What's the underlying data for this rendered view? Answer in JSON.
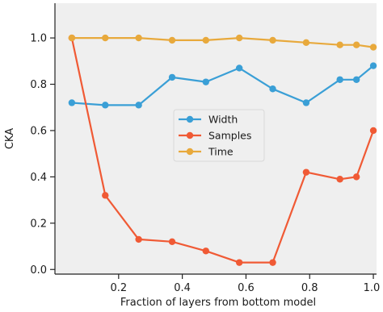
{
  "chart_data": {
    "type": "line",
    "title": "",
    "xlabel": "Fraction of layers from bottom model",
    "ylabel": "CKA",
    "xlim": [
      0.0,
      1.01
    ],
    "ylim": [
      -0.02,
      1.15
    ],
    "xticks": [
      0.2,
      0.4,
      0.6,
      0.8,
      1.0
    ],
    "xtick_labels": [
      "0.2",
      "0.4",
      "0.6",
      "0.8",
      "1.0"
    ],
    "yticks": [
      0.0,
      0.2,
      0.4,
      0.6,
      0.8,
      1.0
    ],
    "ytick_labels": [
      "0.0",
      "0.2",
      "0.4",
      "0.6",
      "0.8",
      "1.0"
    ],
    "grid": false,
    "background": "#efefef",
    "legend": {
      "placement": "center"
    },
    "series": [
      {
        "name": "Width",
        "color": "#3a9fd6",
        "x": [
          0.053,
          0.158,
          0.263,
          0.368,
          0.474,
          0.579,
          0.684,
          0.789,
          0.895,
          0.947,
          1.0
        ],
        "y": [
          0.72,
          0.71,
          0.71,
          0.83,
          0.81,
          0.87,
          0.78,
          0.72,
          0.82,
          0.82,
          0.88
        ]
      },
      {
        "name": "Samples",
        "color": "#f05a35",
        "x": [
          0.053,
          0.158,
          0.263,
          0.368,
          0.474,
          0.579,
          0.684,
          0.789,
          0.895,
          0.947,
          1.0
        ],
        "y": [
          1.0,
          0.32,
          0.13,
          0.12,
          0.08,
          0.03,
          0.03,
          0.42,
          0.39,
          0.4,
          0.6
        ]
      },
      {
        "name": "Time",
        "color": "#e8a93c",
        "x": [
          0.053,
          0.158,
          0.263,
          0.368,
          0.474,
          0.579,
          0.684,
          0.789,
          0.895,
          0.947,
          1.0
        ],
        "y": [
          1.0,
          1.0,
          1.0,
          0.99,
          0.99,
          1.0,
          0.99,
          0.98,
          0.97,
          0.97,
          0.96
        ]
      }
    ]
  }
}
